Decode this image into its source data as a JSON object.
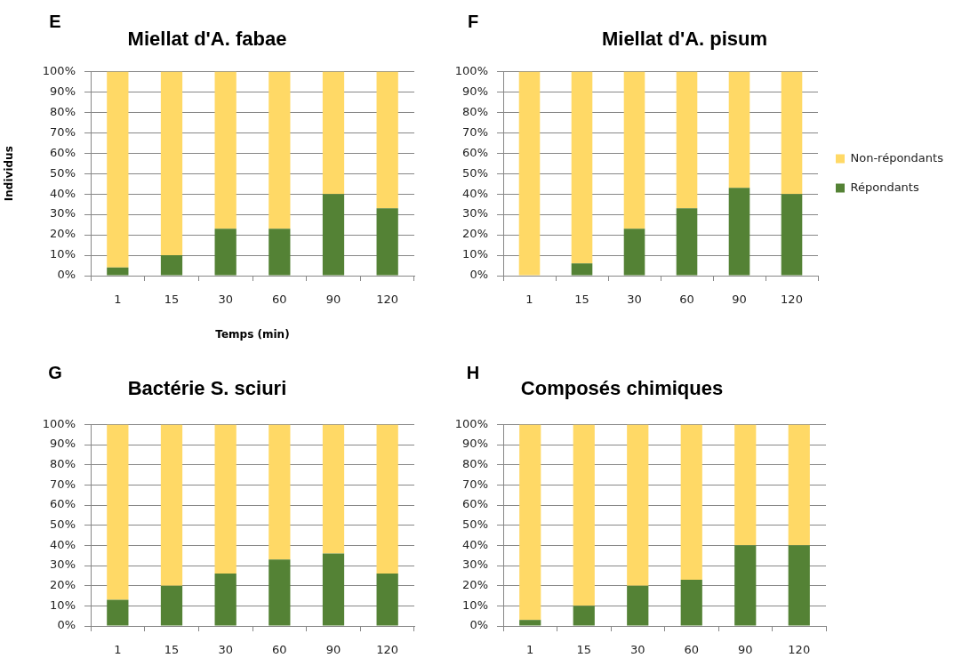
{
  "chart_data": [
    {
      "type": "bar",
      "title": "Miellat d'A. fabae",
      "annotations": [
        "E"
      ],
      "ylabel": "Individus",
      "xlabel": "Temps (min)",
      "categories": [
        "1",
        "15",
        "30",
        "60",
        "90",
        "120"
      ],
      "stacked": true,
      "series": [
        {
          "color": "#548235",
          "values": [
            4,
            10,
            23,
            23,
            40,
            33
          ]
        },
        {
          "color": "#ffd966",
          "values": [
            96,
            90,
            77,
            77,
            60,
            67
          ]
        }
      ],
      "ylim": [
        0,
        100
      ],
      "yticks": [
        {
          "value": 0,
          "label": "0%"
        },
        {
          "value": 10,
          "label": "10%"
        },
        {
          "value": 20,
          "label": "20%"
        },
        {
          "value": 30,
          "label": "30%"
        },
        {
          "value": 40,
          "label": "40%"
        },
        {
          "value": 50,
          "label": "50%"
        },
        {
          "value": 60,
          "label": "60%"
        },
        {
          "value": 70,
          "label": "70%"
        },
        {
          "value": 80,
          "label": "80%"
        },
        {
          "value": 90,
          "label": "90%"
        },
        {
          "value": 100,
          "label": "100%"
        }
      ],
      "grid": "y"
    },
    {
      "type": "bar",
      "title": "Miellat d'A. pisum",
      "annotations": [
        "F"
      ],
      "categories": [
        "1",
        "15",
        "30",
        "60",
        "90",
        "120"
      ],
      "stacked": true,
      "series": [
        {
          "name": "Répondants",
          "color": "#548235",
          "values": [
            0,
            6,
            23,
            33,
            43,
            40
          ]
        },
        {
          "name": "Non-répondants",
          "color": "#ffd966",
          "values": [
            100,
            94,
            77,
            67,
            57,
            60
          ]
        }
      ],
      "ylim": [
        0,
        100
      ],
      "yticks": [
        {
          "value": 0,
          "label": "0%"
        },
        {
          "value": 10,
          "label": "10%"
        },
        {
          "value": 20,
          "label": "20%"
        },
        {
          "value": 30,
          "label": "30%"
        },
        {
          "value": 40,
          "label": "40%"
        },
        {
          "value": 50,
          "label": "50%"
        },
        {
          "value": 60,
          "label": "60%"
        },
        {
          "value": 70,
          "label": "70%"
        },
        {
          "value": 80,
          "label": "80%"
        },
        {
          "value": 90,
          "label": "90%"
        },
        {
          "value": 100,
          "label": "100%"
        }
      ],
      "grid": "y",
      "legend": "right"
    },
    {
      "type": "bar",
      "title": "Bactérie S. sciuri",
      "annotations": [
        "G"
      ],
      "categories": [
        "1",
        "15",
        "30",
        "60",
        "90",
        "120"
      ],
      "stacked": true,
      "series": [
        {
          "color": "#548235",
          "values": [
            13,
            20,
            26,
            33,
            36,
            26
          ]
        },
        {
          "color": "#ffd966",
          "values": [
            87,
            80,
            74,
            67,
            64,
            74
          ]
        }
      ],
      "ylim": [
        0,
        100
      ],
      "yticks": [
        {
          "value": 0,
          "label": "0%"
        },
        {
          "value": 10,
          "label": "10%"
        },
        {
          "value": 20,
          "label": "20%"
        },
        {
          "value": 30,
          "label": "30%"
        },
        {
          "value": 40,
          "label": "40%"
        },
        {
          "value": 50,
          "label": "50%"
        },
        {
          "value": 60,
          "label": "60%"
        },
        {
          "value": 70,
          "label": "70%"
        },
        {
          "value": 80,
          "label": "80%"
        },
        {
          "value": 90,
          "label": "90%"
        },
        {
          "value": 100,
          "label": "100%"
        }
      ],
      "grid": "y"
    },
    {
      "type": "bar",
      "title": "Composés chimiques",
      "annotations": [
        "H"
      ],
      "categories": [
        "1",
        "15",
        "30",
        "60",
        "90",
        "120"
      ],
      "stacked": true,
      "series": [
        {
          "color": "#548235",
          "values": [
            3,
            10,
            20,
            23,
            40,
            40
          ]
        },
        {
          "color": "#ffd966",
          "values": [
            97,
            90,
            80,
            77,
            60,
            60
          ]
        }
      ],
      "ylim": [
        0,
        100
      ],
      "yticks": [
        {
          "value": 0,
          "label": "0%"
        },
        {
          "value": 10,
          "label": "10%"
        },
        {
          "value": 20,
          "label": "20%"
        },
        {
          "value": 30,
          "label": "30%"
        },
        {
          "value": 40,
          "label": "40%"
        },
        {
          "value": 50,
          "label": "50%"
        },
        {
          "value": 60,
          "label": "60%"
        },
        {
          "value": 70,
          "label": "70%"
        },
        {
          "value": 80,
          "label": "80%"
        },
        {
          "value": 90,
          "label": "90%"
        },
        {
          "value": 100,
          "label": "100%"
        }
      ],
      "grid": "y"
    }
  ]
}
